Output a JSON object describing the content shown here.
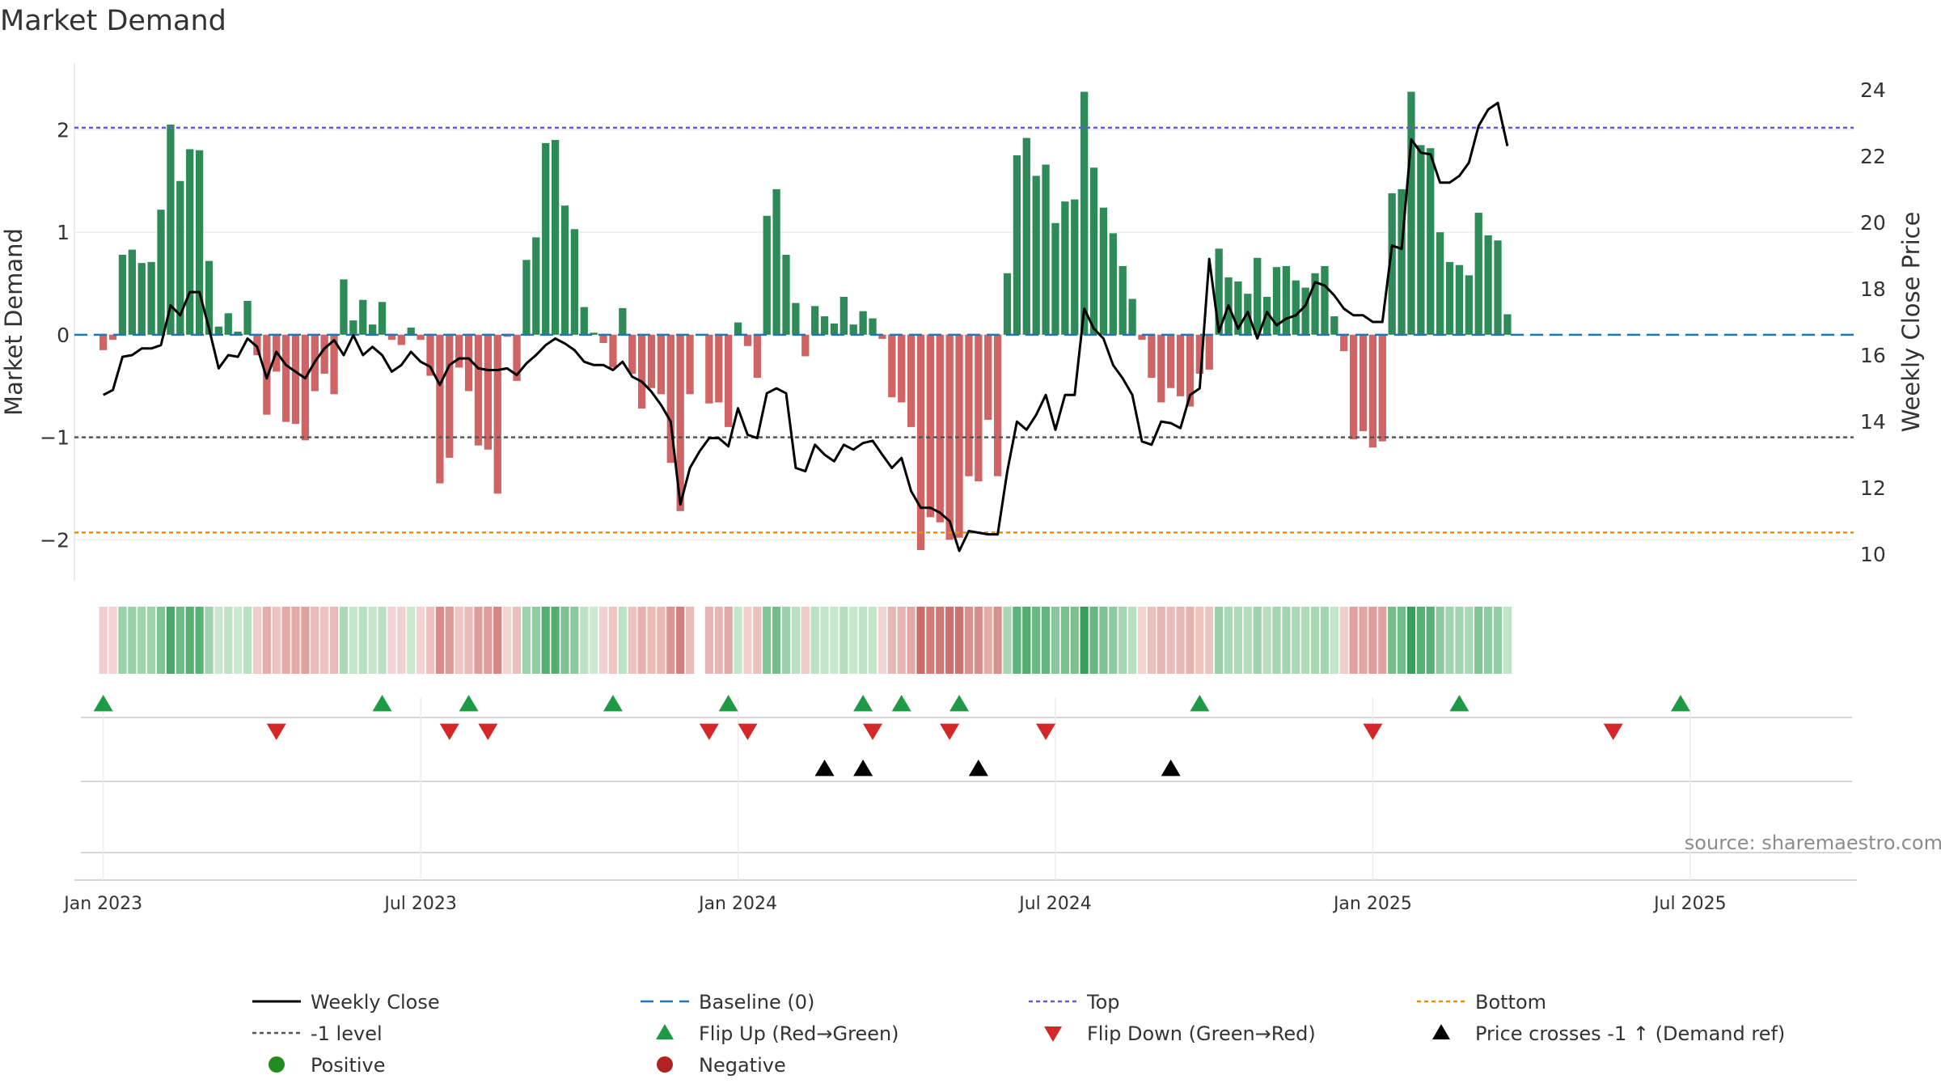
{
  "chart_data": {
    "type": "bar",
    "title": "Market Demand",
    "ylabel": "Market Demand",
    "y2label": "Weekly Close Price",
    "ylim": [
      -2.4,
      2.65
    ],
    "y2lim": [
      9.2,
      24.8
    ],
    "yticks": [
      -2,
      -1,
      0,
      1,
      2
    ],
    "y2ticks": [
      10,
      12,
      14,
      16,
      18,
      20,
      22,
      24
    ],
    "ytick_labels": [
      "−2",
      "−1",
      "0",
      "1",
      "2"
    ],
    "xlim_weeks": [
      -3,
      182
    ],
    "xticks": [
      {
        "label": "Jan 2023",
        "week": 0
      },
      {
        "label": "Jul 2023",
        "week": 33
      },
      {
        "label": "Jan 2024",
        "week": 66
      },
      {
        "label": "Jul 2024",
        "week": 99
      },
      {
        "label": "Jan 2025",
        "week": 132
      },
      {
        "label": "Jul 2025",
        "week": 165
      }
    ],
    "levels": {
      "top": 2.02,
      "minus_one": -1.0,
      "bottom": -1.93,
      "baseline": 0
    },
    "demand": [
      -0.15,
      -0.05,
      0.78,
      0.83,
      0.7,
      0.71,
      1.22,
      2.05,
      1.5,
      1.81,
      1.8,
      0.72,
      0.08,
      0.21,
      0.03,
      0.33,
      -0.2,
      -0.78,
      -0.36,
      -0.85,
      -0.87,
      -1.03,
      -0.55,
      -0.38,
      -0.58,
      0.54,
      0.14,
      0.34,
      0.1,
      0.32,
      -0.05,
      -0.1,
      0.07,
      -0.05,
      -0.4,
      -1.45,
      -1.2,
      -0.32,
      -0.55,
      -1.08,
      -1.12,
      -1.55,
      -0.02,
      -0.45,
      0.73,
      0.95,
      1.87,
      1.9,
      1.26,
      1.03,
      0.27,
      0.02,
      -0.08,
      -0.32,
      0.26,
      -0.38,
      -0.72,
      -0.52,
      -0.58,
      -1.25,
      -1.72,
      -0.58,
      0.0,
      -0.67,
      -0.66,
      -0.9,
      0.12,
      -0.11,
      -0.42,
      1.16,
      1.42,
      0.78,
      0.31,
      -0.21,
      0.28,
      0.18,
      0.11,
      0.37,
      0.1,
      0.23,
      0.16,
      -0.04,
      -0.61,
      -0.66,
      -0.9,
      -2.1,
      -1.78,
      -1.83,
      -2.0,
      -1.98,
      -1.38,
      -1.43,
      -0.83,
      -1.38,
      0.6,
      1.75,
      1.92,
      1.55,
      1.66,
      1.09,
      1.3,
      1.32,
      2.37,
      1.63,
      1.24,
      0.99,
      0.67,
      0.35,
      -0.05,
      -0.42,
      -0.66,
      -0.52,
      -0.6,
      -0.7,
      -0.38,
      -0.34,
      0.84,
      0.56,
      0.52,
      0.4,
      0.75,
      0.37,
      0.66,
      0.67,
      0.53,
      0.46,
      0.6,
      0.67,
      0.18,
      -0.16,
      -1.02,
      -0.94,
      -1.1,
      -1.04,
      1.38,
      1.42,
      2.37,
      1.85,
      1.82,
      1.0,
      0.71,
      0.68,
      0.58,
      1.19,
      0.97,
      0.92,
      0.2
    ],
    "weekly_close": [
      14.8,
      14.95,
      15.95,
      16.0,
      16.2,
      16.2,
      16.3,
      17.5,
      17.2,
      17.9,
      17.9,
      16.8,
      15.6,
      16.0,
      15.95,
      16.5,
      16.25,
      15.3,
      16.1,
      15.7,
      15.5,
      15.3,
      15.8,
      16.2,
      16.45,
      16.0,
      16.6,
      16.0,
      16.25,
      16.0,
      15.5,
      15.7,
      16.1,
      15.8,
      15.65,
      15.1,
      15.7,
      15.9,
      15.9,
      15.6,
      15.55,
      15.55,
      15.6,
      15.4,
      15.75,
      16.0,
      16.3,
      16.5,
      16.35,
      16.15,
      15.8,
      15.7,
      15.7,
      15.55,
      15.8,
      15.35,
      15.2,
      14.9,
      14.5,
      14.0,
      11.5,
      12.6,
      13.1,
      13.5,
      13.5,
      13.25,
      14.4,
      13.6,
      13.5,
      14.85,
      15.0,
      14.85,
      12.6,
      12.5,
      13.3,
      13.0,
      12.8,
      13.3,
      13.15,
      13.35,
      13.42,
      13.0,
      12.6,
      12.9,
      11.9,
      11.4,
      11.4,
      11.25,
      11.0,
      10.1,
      10.7,
      10.65,
      10.6,
      10.6,
      12.5,
      14.0,
      13.75,
      14.2,
      14.8,
      13.75,
      14.8,
      14.8,
      17.4,
      16.8,
      16.5,
      15.7,
      15.3,
      14.8,
      13.4,
      13.3,
      14.0,
      13.95,
      13.8,
      14.8,
      15.0,
      18.9,
      16.7,
      17.5,
      16.8,
      17.3,
      16.5,
      17.3,
      16.9,
      17.1,
      17.2,
      17.5,
      18.2,
      18.1,
      17.8,
      17.4,
      17.2,
      17.2,
      17.0,
      17.0,
      19.3,
      19.2,
      22.5,
      22.1,
      22.05,
      21.2,
      21.2,
      21.4,
      21.8,
      22.9,
      23.4,
      23.6,
      22.3
    ],
    "flip_up_weeks": [
      0,
      29,
      38,
      53,
      65,
      79,
      83,
      89,
      114,
      141,
      164
    ],
    "flip_down_weeks": [
      18,
      36,
      40,
      63,
      67,
      80,
      88,
      98,
      132,
      157
    ],
    "price_cross_weeks": [
      75,
      79,
      91,
      111
    ],
    "legend": [
      {
        "key": "weekly_close",
        "label": "Weekly Close"
      },
      {
        "key": "baseline",
        "label": "Baseline (0)"
      },
      {
        "key": "top",
        "label": "Top"
      },
      {
        "key": "bottom",
        "label": "Bottom"
      },
      {
        "key": "minus_one",
        "label": "-1 level"
      },
      {
        "key": "flip_up",
        "label": "Flip Up (Red→Green)"
      },
      {
        "key": "flip_down",
        "label": "Flip Down (Green→Red)"
      },
      {
        "key": "price_cross",
        "label": "Price crosses -1 ↑ (Demand ref)"
      },
      {
        "key": "positive",
        "label": "Positive"
      },
      {
        "key": "negative",
        "label": "Negative"
      }
    ],
    "source_note": "source: sharemaestro.com"
  },
  "colors": {
    "positive_bar": "#2e8a57",
    "negative_bar": "#cd5c5c",
    "close_line": "#000000",
    "baseline": "#1f77b4",
    "top": "#6a5acd",
    "bottom": "#e8900c",
    "minus_one": "#555555",
    "flip_up": "#1e9a45",
    "flip_down": "#d62728",
    "price_cross": "#000000",
    "positive_dot": "#228b22",
    "negative_dot": "#b22222"
  }
}
